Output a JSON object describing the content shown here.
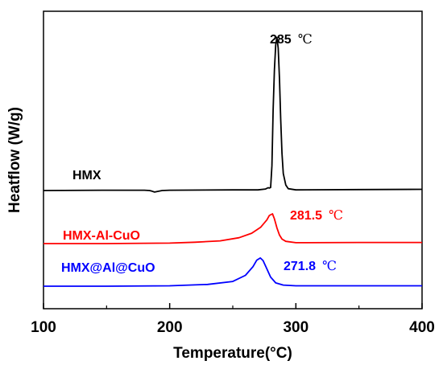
{
  "chart_data": {
    "type": "line",
    "xlabel": "Temperature(°C)",
    "ylabel": "Heatflow (W/g)",
    "xlim": [
      100,
      400
    ],
    "xticks": [
      "100",
      "200",
      "300",
      "400"
    ],
    "y_ticks_shown": false,
    "grid": false,
    "series": [
      {
        "name": "HMX",
        "color": "#000000",
        "x": [
          100,
          150,
          180,
          184,
          186,
          188,
          190,
          194,
          200,
          250,
          270,
          276,
          278,
          279,
          280,
          281,
          282,
          283,
          284,
          285,
          286,
          287,
          288,
          289,
          290,
          292,
          294,
          300,
          350,
          400
        ],
        "y": [
          0.0,
          0.01,
          0.01,
          0.0,
          -0.02,
          -0.05,
          -0.03,
          0.0,
          0.01,
          0.02,
          0.02,
          0.05,
          0.09,
          0.08,
          0.1,
          0.8,
          2.6,
          3.9,
          4.7,
          4.95,
          4.6,
          3.6,
          2.3,
          1.2,
          0.55,
          0.18,
          0.06,
          0.02,
          0.03,
          0.04
        ]
      },
      {
        "name": "HMX-Al-CuO",
        "color": "#ff0000",
        "x": [
          100,
          150,
          200,
          220,
          240,
          255,
          265,
          272,
          277,
          279,
          281.5,
          283,
          285,
          287,
          289,
          292,
          300,
          350,
          400
        ],
        "y": [
          0.0,
          0.0,
          0.02,
          0.06,
          0.12,
          0.26,
          0.46,
          0.72,
          1.05,
          1.25,
          1.32,
          1.1,
          0.7,
          0.38,
          0.2,
          0.1,
          0.04,
          0.05,
          0.05
        ]
      },
      {
        "name": "HMX@Al@CuO",
        "color": "#0000ff",
        "x": [
          100,
          150,
          200,
          230,
          250,
          260,
          266,
          269,
          271.8,
          274,
          277,
          280,
          284,
          290,
          300,
          350,
          400
        ],
        "y": [
          0.0,
          0.0,
          0.02,
          0.08,
          0.22,
          0.5,
          0.9,
          1.2,
          1.3,
          1.18,
          0.8,
          0.42,
          0.15,
          0.05,
          0.02,
          0.02,
          0.02
        ]
      }
    ],
    "annotations": [
      {
        "value": "285",
        "unit": "℃",
        "color": "#000000"
      },
      {
        "value": "281.5",
        "unit": "℃",
        "color": "#ff0000"
      },
      {
        "value": "271.8",
        "unit": "℃",
        "color": "#0000ff"
      }
    ]
  }
}
